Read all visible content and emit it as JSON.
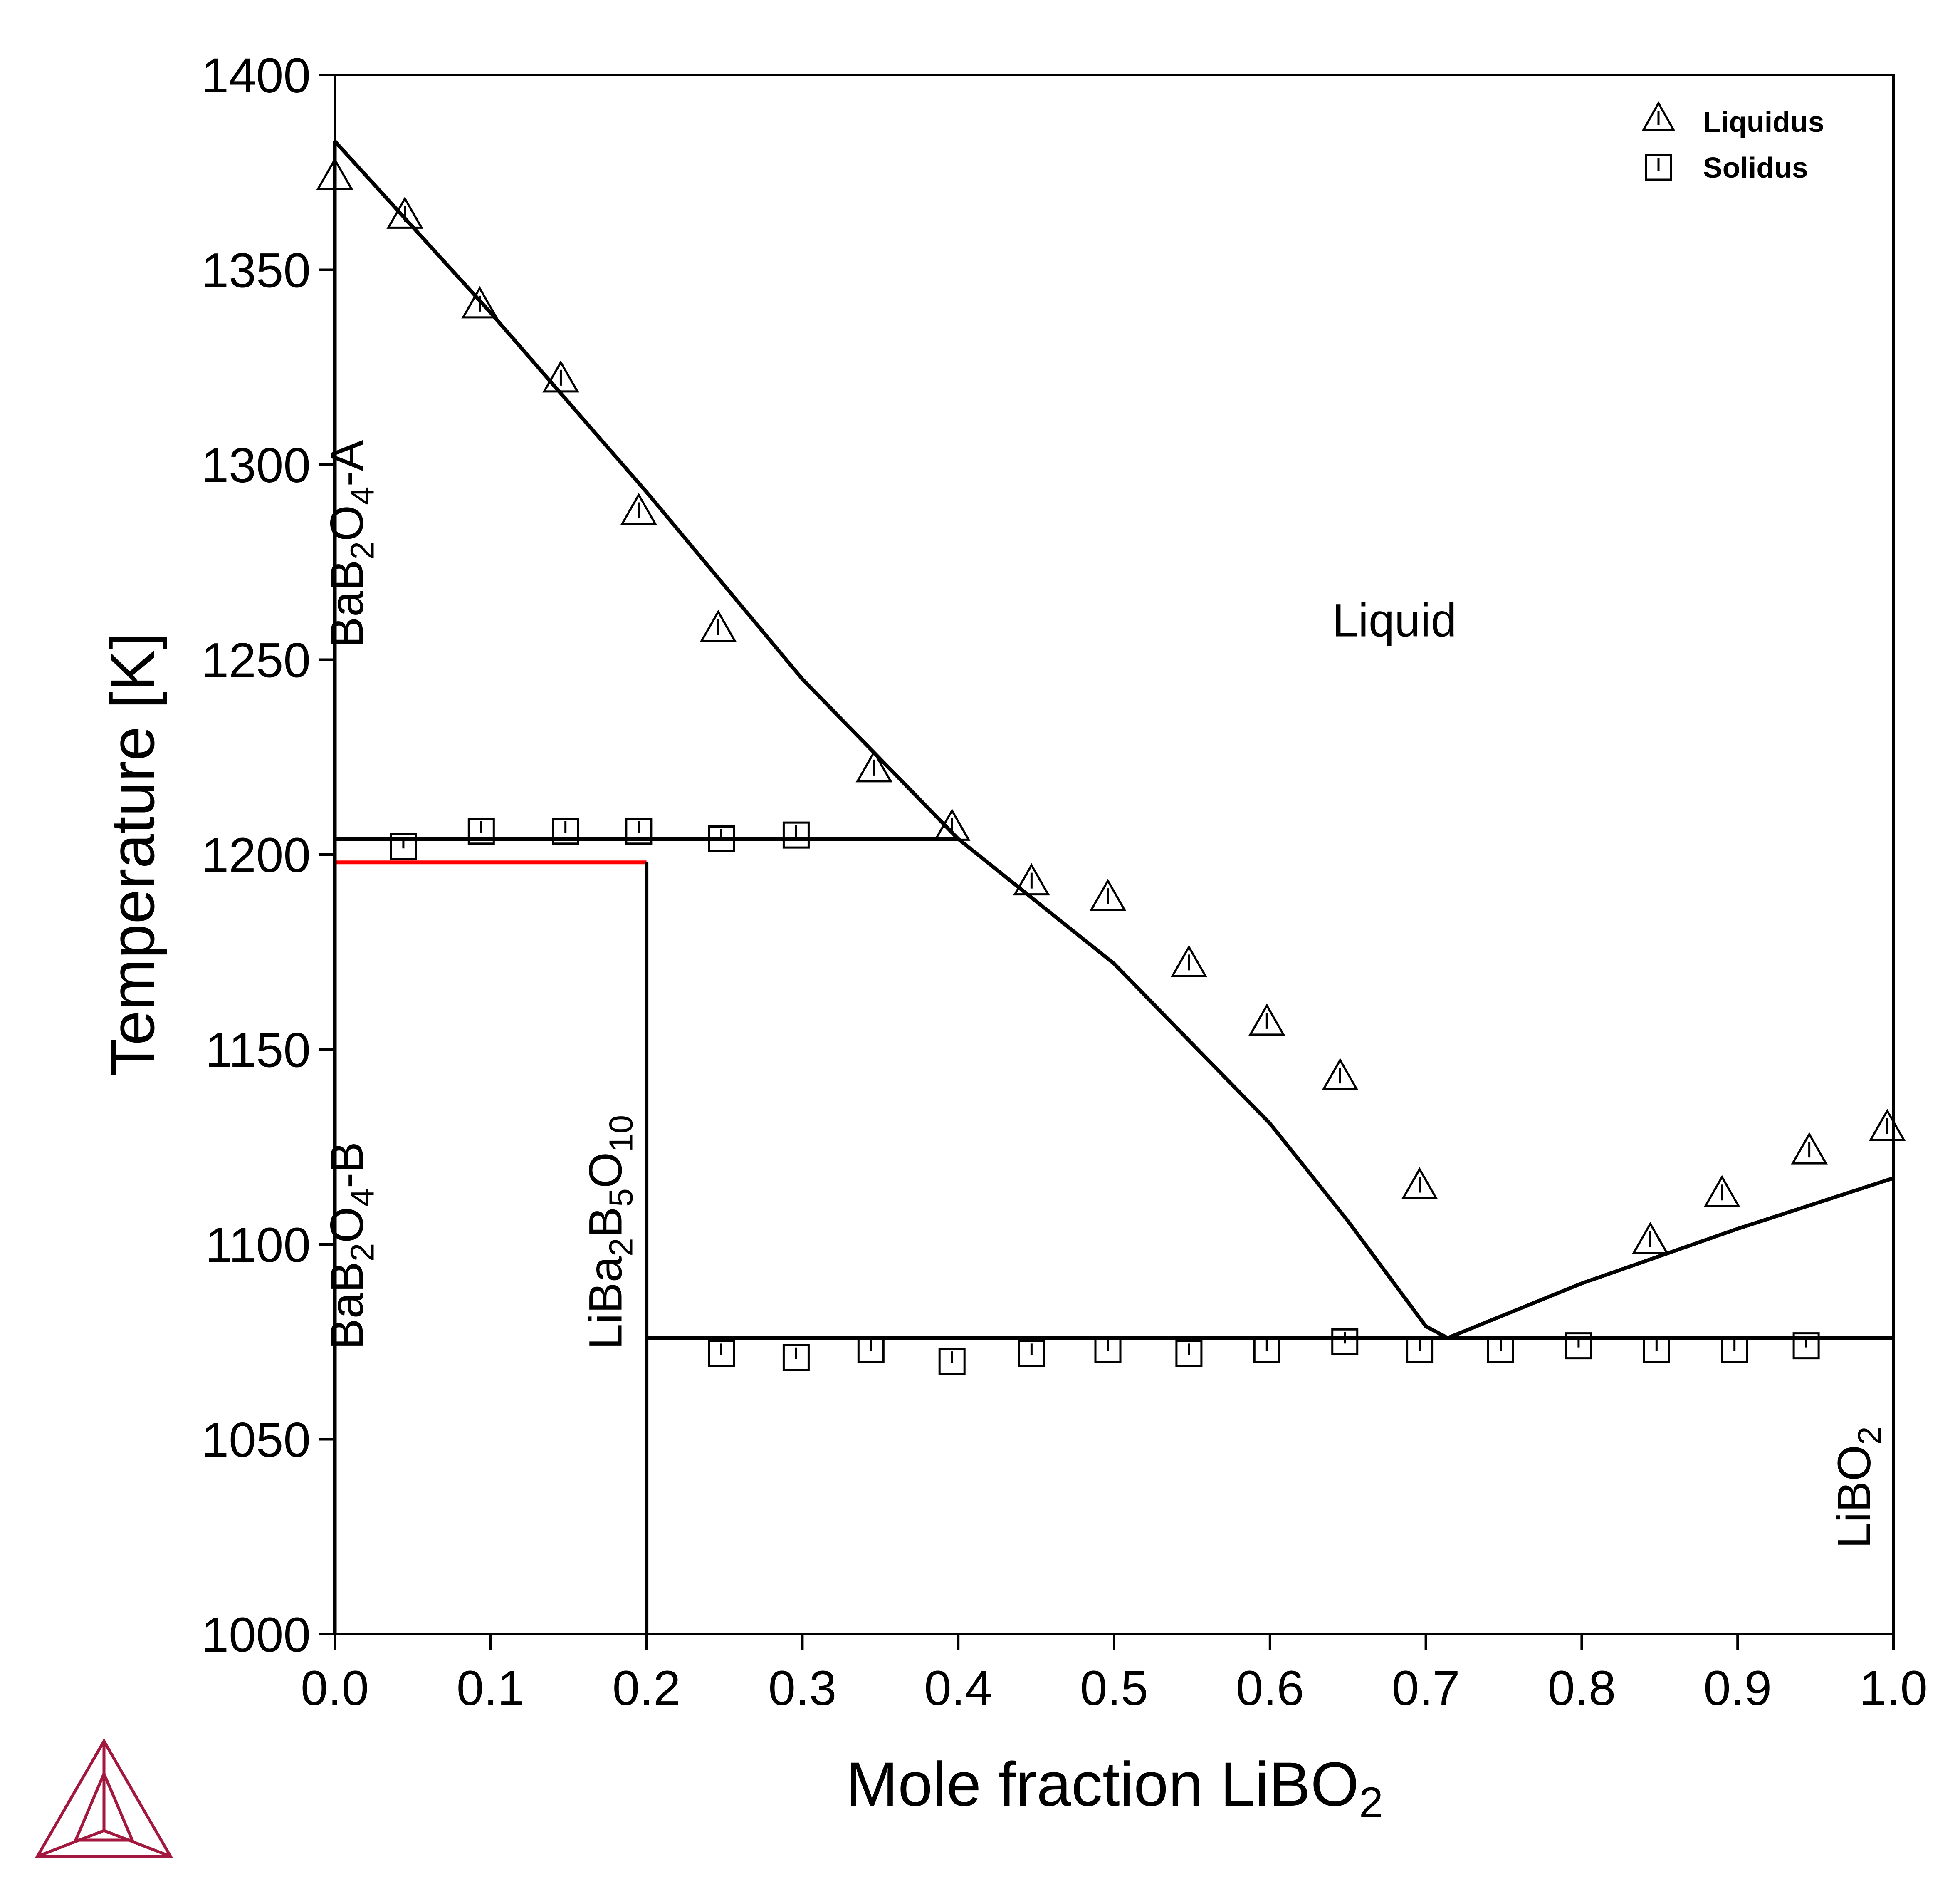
{
  "chart_data": {
    "type": "scatter",
    "xlabel": "Mole fraction LiBO",
    "xlabel_sub": "2",
    "ylabel": "Temperature [K]",
    "xlim": [
      0.0,
      1.0
    ],
    "ylim": [
      1000,
      1400
    ],
    "x_ticks": [
      "0.0",
      "0.1",
      "0.2",
      "0.3",
      "0.4",
      "0.5",
      "0.6",
      "0.7",
      "0.8",
      "0.9",
      "1.0"
    ],
    "y_ticks": [
      "1000",
      "1050",
      "1100",
      "1150",
      "1200",
      "1250",
      "1300",
      "1350",
      "1400"
    ],
    "grid": false,
    "legend_position": "top-right",
    "legend": [
      {
        "label": "Liquidus",
        "marker": "triangle"
      },
      {
        "label": "Solidus",
        "marker": "square"
      }
    ],
    "series": [
      {
        "name": "Liquidus",
        "marker": "triangle",
        "points": [
          [
            0.0,
            1374
          ],
          [
            0.045,
            1364
          ],
          [
            0.093,
            1341
          ],
          [
            0.145,
            1322
          ],
          [
            0.195,
            1288
          ],
          [
            0.246,
            1258
          ],
          [
            0.346,
            1222
          ],
          [
            0.396,
            1207
          ],
          [
            0.447,
            1193
          ],
          [
            0.496,
            1189
          ],
          [
            0.548,
            1172
          ],
          [
            0.598,
            1157
          ],
          [
            0.645,
            1143
          ],
          [
            0.696,
            1115
          ],
          [
            0.844,
            1101
          ],
          [
            0.89,
            1113
          ],
          [
            0.946,
            1124
          ],
          [
            0.996,
            1130
          ]
        ]
      },
      {
        "name": "Solidus",
        "marker": "square",
        "points": [
          [
            0.044,
            1202
          ],
          [
            0.094,
            1206
          ],
          [
            0.148,
            1206
          ],
          [
            0.195,
            1206
          ],
          [
            0.248,
            1204
          ],
          [
            0.296,
            1205
          ],
          [
            0.248,
            1072
          ],
          [
            0.296,
            1071
          ],
          [
            0.344,
            1073
          ],
          [
            0.396,
            1070
          ],
          [
            0.447,
            1072
          ],
          [
            0.496,
            1073
          ],
          [
            0.548,
            1072
          ],
          [
            0.598,
            1073
          ],
          [
            0.648,
            1075
          ],
          [
            0.696,
            1073
          ],
          [
            0.748,
            1073
          ],
          [
            0.798,
            1074
          ],
          [
            0.848,
            1073
          ],
          [
            0.898,
            1073
          ],
          [
            0.944,
            1074
          ]
        ]
      }
    ],
    "lines": [
      {
        "color": "#000000",
        "points": [
          [
            0.0,
            1383
          ],
          [
            0.1,
            1339
          ],
          [
            0.2,
            1293
          ],
          [
            0.3,
            1245
          ],
          [
            0.4,
            1204
          ]
        ]
      },
      {
        "color": "#000000",
        "points": [
          [
            0.4,
            1204
          ],
          [
            0.5,
            1172
          ],
          [
            0.6,
            1131
          ],
          [
            0.65,
            1106
          ],
          [
            0.7,
            1079
          ],
          [
            0.714,
            1076
          ]
        ]
      },
      {
        "color": "#000000",
        "points": [
          [
            0.714,
            1076
          ],
          [
            0.8,
            1090
          ],
          [
            0.9,
            1104
          ],
          [
            1.0,
            1117
          ]
        ]
      },
      {
        "color": "#000000",
        "points": [
          [
            0.0,
            1204
          ],
          [
            0.4,
            1204
          ]
        ]
      },
      {
        "color": "#ff0000",
        "points": [
          [
            0.0,
            1198
          ],
          [
            0.2,
            1198
          ]
        ]
      },
      {
        "color": "#000000",
        "points": [
          [
            0.2,
            1076
          ],
          [
            1.0,
            1076
          ]
        ]
      },
      {
        "color": "#000000",
        "points": [
          [
            0.2,
            1000
          ],
          [
            0.2,
            1198
          ]
        ]
      },
      {
        "color": "#000000",
        "points": [
          [
            0.0,
            1000
          ],
          [
            0.0,
            1383
          ]
        ]
      }
    ],
    "region_labels": [
      {
        "id": "liquid",
        "parts": [
          {
            "t": "Liquid",
            "s": false
          }
        ],
        "x": 0.64,
        "y": 1256,
        "rotate": false
      },
      {
        "id": "bab2o4-a",
        "parts": [
          {
            "t": "BaB",
            "s": false
          },
          {
            "t": "2",
            "s": true
          },
          {
            "t": "O",
            "s": false
          },
          {
            "t": "4",
            "s": true
          },
          {
            "t": "-A",
            "s": false
          }
        ],
        "x": 0.018,
        "y": 1253,
        "rotate": true
      },
      {
        "id": "bab2o4-b",
        "parts": [
          {
            "t": "BaB",
            "s": false
          },
          {
            "t": "2",
            "s": true
          },
          {
            "t": "O",
            "s": false
          },
          {
            "t": "4",
            "s": true
          },
          {
            "t": "-B",
            "s": false
          }
        ],
        "x": 0.018,
        "y": 1073,
        "rotate": true
      },
      {
        "id": "liba2b5o10",
        "parts": [
          {
            "t": "LiBa",
            "s": false
          },
          {
            "t": "2",
            "s": true
          },
          {
            "t": "B",
            "s": false
          },
          {
            "t": "5",
            "s": true
          },
          {
            "t": "O",
            "s": false
          },
          {
            "t": "10",
            "s": true
          }
        ],
        "x": 0.184,
        "y": 1073,
        "rotate": true
      },
      {
        "id": "libo2",
        "parts": [
          {
            "t": "LiBO",
            "s": false
          },
          {
            "t": "2",
            "s": true
          }
        ],
        "x": 0.985,
        "y": 1022,
        "rotate": true
      }
    ]
  },
  "colors": {
    "axis": "#000000",
    "phase_line": "#000000",
    "highlight_line": "#ff0000",
    "logo": "#a3183e"
  }
}
